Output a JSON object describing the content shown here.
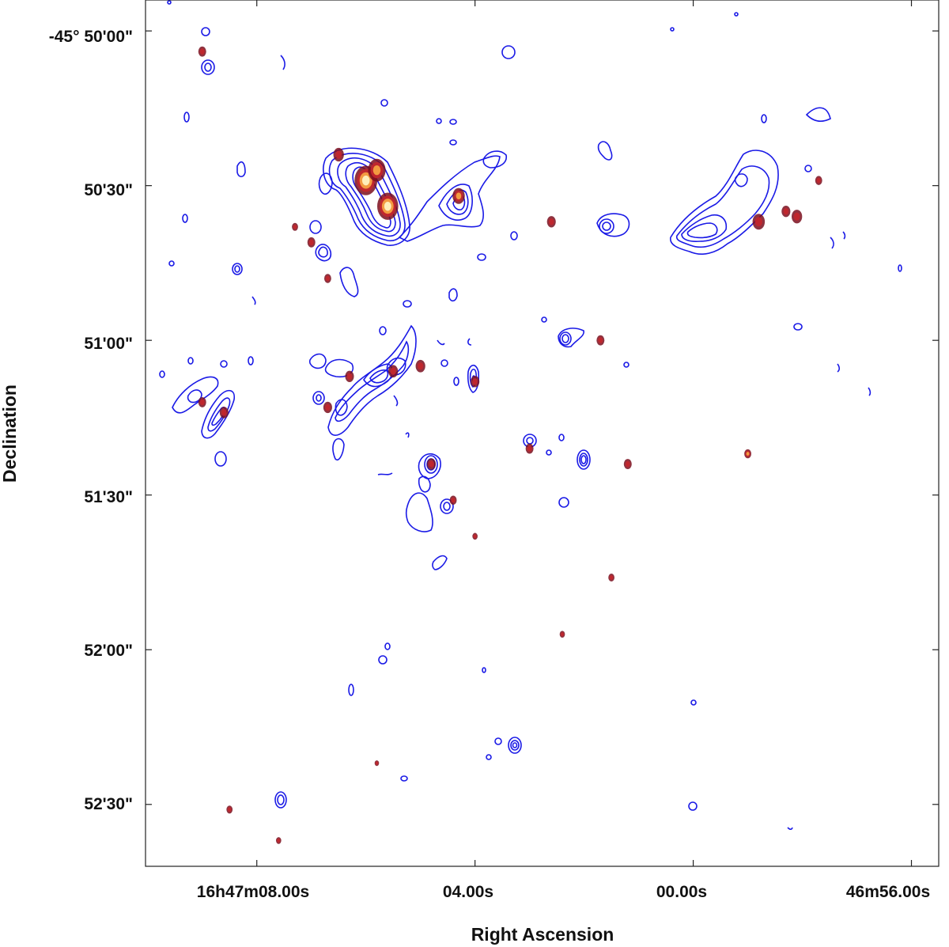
{
  "chart_data": {
    "type": "scatter",
    "title": "",
    "xlabel": "Right Ascension",
    "ylabel": "Declination",
    "x_ticks": [
      "16h47m08.00s",
      "04.00s",
      "00.00s",
      "46m56.00s"
    ],
    "y_ticks": [
      "-45° 50'00\"",
      "50'30\"",
      "51'00\"",
      "51'30\"",
      "52'00\"",
      "52'30\""
    ],
    "x_tick_seconds": [
      488,
      484,
      480,
      476
    ],
    "y_tick_arcsec": [
      0,
      30,
      60,
      90,
      120,
      150
    ],
    "xlim_seconds": [
      490.04,
      475.5
    ],
    "ylim_arcsec_offset_south": [
      -6,
      162
    ],
    "grid": false,
    "colors": {
      "contour": "#1a1ae6",
      "emission_low": "#7a0f1e",
      "emission_mid": "#c2272d",
      "emission_high": "#f5a142",
      "emission_peak": "#fff2c0"
    },
    "sources": [
      {
        "ra_s": 486.0,
        "dec_off": 29,
        "level": 4,
        "size": 2.6
      },
      {
        "ra_s": 485.6,
        "dec_off": 34,
        "level": 4,
        "size": 2.4
      },
      {
        "ra_s": 485.8,
        "dec_off": 27,
        "level": 3,
        "size": 2.0
      },
      {
        "ra_s": 486.5,
        "dec_off": 24,
        "level": 2,
        "size": 1.2
      },
      {
        "ra_s": 484.3,
        "dec_off": 32,
        "level": 3,
        "size": 1.4
      },
      {
        "ra_s": 482.6,
        "dec_off": 37,
        "level": 2,
        "size": 1.0
      },
      {
        "ra_s": 478.8,
        "dec_off": 37,
        "level": 2,
        "size": 1.4
      },
      {
        "ra_s": 478.3,
        "dec_off": 35,
        "level": 2,
        "size": 1.0
      },
      {
        "ra_s": 478.1,
        "dec_off": 36,
        "level": 2,
        "size": 1.2
      },
      {
        "ra_s": 477.7,
        "dec_off": 29,
        "level": 2,
        "size": 0.8
      },
      {
        "ra_s": 487.0,
        "dec_off": 41,
        "level": 2,
        "size": 0.9
      },
      {
        "ra_s": 487.3,
        "dec_off": 38,
        "level": 2,
        "size": 0.7
      },
      {
        "ra_s": 486.7,
        "dec_off": 48,
        "level": 2,
        "size": 0.8
      },
      {
        "ra_s": 481.7,
        "dec_off": 60,
        "level": 2,
        "size": 0.9
      },
      {
        "ra_s": 485.5,
        "dec_off": 66,
        "level": 2,
        "size": 1.1
      },
      {
        "ra_s": 485.0,
        "dec_off": 65,
        "level": 2,
        "size": 1.1
      },
      {
        "ra_s": 486.3,
        "dec_off": 67,
        "level": 2,
        "size": 1.0
      },
      {
        "ra_s": 486.7,
        "dec_off": 73,
        "level": 2,
        "size": 1.0
      },
      {
        "ra_s": 484.0,
        "dec_off": 68,
        "level": 2,
        "size": 1.0
      },
      {
        "ra_s": 489.0,
        "dec_off": 72,
        "level": 2,
        "size": 0.9
      },
      {
        "ra_s": 488.6,
        "dec_off": 74,
        "level": 2,
        "size": 1.0
      },
      {
        "ra_s": 484.8,
        "dec_off": 84,
        "level": 2,
        "size": 1.0
      },
      {
        "ra_s": 483.0,
        "dec_off": 81,
        "level": 2,
        "size": 0.9
      },
      {
        "ra_s": 481.2,
        "dec_off": 84,
        "level": 2,
        "size": 0.9
      },
      {
        "ra_s": 479.0,
        "dec_off": 82,
        "level": 3,
        "size": 0.8
      },
      {
        "ra_s": 484.4,
        "dec_off": 91,
        "level": 2,
        "size": 0.8
      },
      {
        "ra_s": 489.0,
        "dec_off": 4,
        "level": 2,
        "size": 0.9
      },
      {
        "ra_s": 484.0,
        "dec_off": 98,
        "level": 2,
        "size": 0.6
      },
      {
        "ra_s": 481.5,
        "dec_off": 106,
        "level": 2,
        "size": 0.7
      },
      {
        "ra_s": 485.8,
        "dec_off": 142,
        "level": 2,
        "size": 0.5
      },
      {
        "ra_s": 482.4,
        "dec_off": 117,
        "level": 2,
        "size": 0.6
      },
      {
        "ra_s": 488.5,
        "dec_off": 151,
        "level": 2,
        "size": 0.7
      },
      {
        "ra_s": 487.6,
        "dec_off": 157,
        "level": 2,
        "size": 0.6
      }
    ]
  }
}
